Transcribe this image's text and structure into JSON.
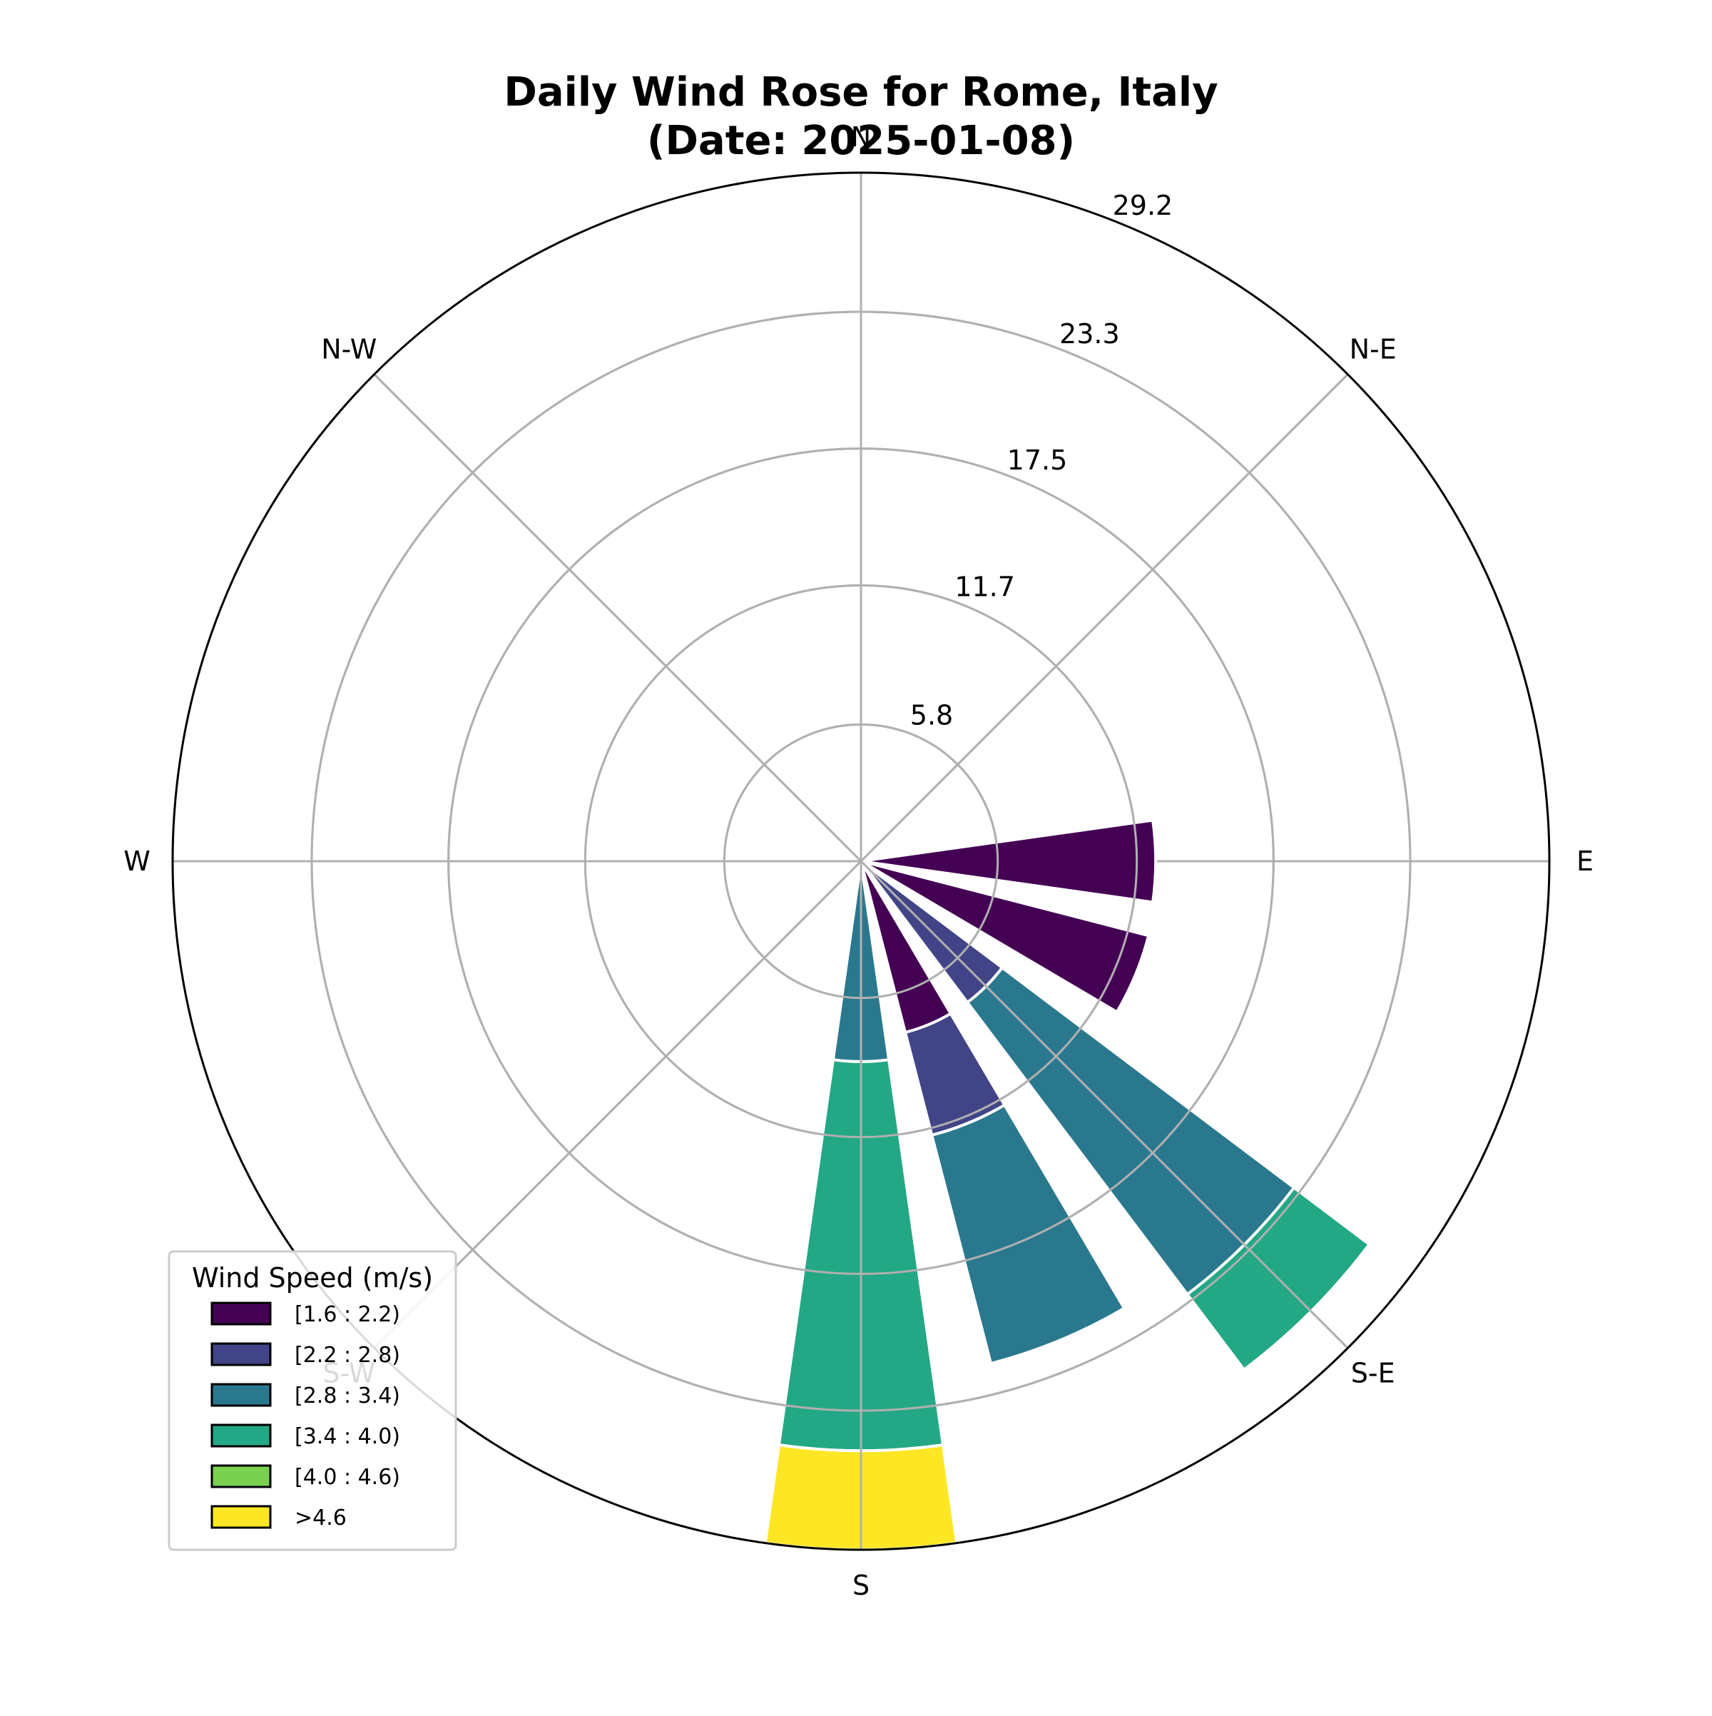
{
  "chart_data": {
    "type": "windrose",
    "title_line1": "Daily Wind Rose for Rome, Italy",
    "title_line2": "(Date: 2025-01-08)",
    "directions": [
      "E",
      "N-E",
      "N",
      "N-W",
      "W",
      "S-W",
      "S",
      "S-E"
    ],
    "radial_ticks": [
      "5.8",
      "11.7",
      "17.5",
      "23.3",
      "29.2"
    ],
    "radial_tick_values": [
      5.8,
      11.7,
      17.5,
      23.3,
      29.2
    ],
    "rmax": 29.2,
    "grid": true,
    "legend": {
      "title": "Wind Speed (m/s)",
      "placement": "lower-left",
      "bins": [
        {
          "label": "[1.6 : 2.2)",
          "color": "#440154"
        },
        {
          "label": "[2.2 : 2.8)",
          "color": "#414487"
        },
        {
          "label": "[2.8 : 3.4)",
          "color": "#2a788e"
        },
        {
          "label": "[3.4 : 4.0)",
          "color": "#22a884"
        },
        {
          "label": "[4.0 : 4.6)",
          "color": "#7ad151"
        },
        {
          "label": ">4.6",
          "color": "#fde725"
        }
      ]
    },
    "sectors": [
      {
        "direction_deg": 90,
        "cumulative": [
          12.5
        ]
      },
      {
        "direction_deg": 112.5,
        "cumulative": [
          12.6
        ]
      },
      {
        "direction_deg": 135,
        "cumulative": [
          null,
          7.5,
          23.0,
          27.0
        ]
      },
      {
        "direction_deg": 157.5,
        "cumulative": [
          7.5,
          12.0,
          22.0
        ]
      },
      {
        "direction_deg": 180,
        "cumulative": [
          null,
          null,
          8.5,
          25.0,
          null,
          29.2
        ]
      }
    ]
  }
}
